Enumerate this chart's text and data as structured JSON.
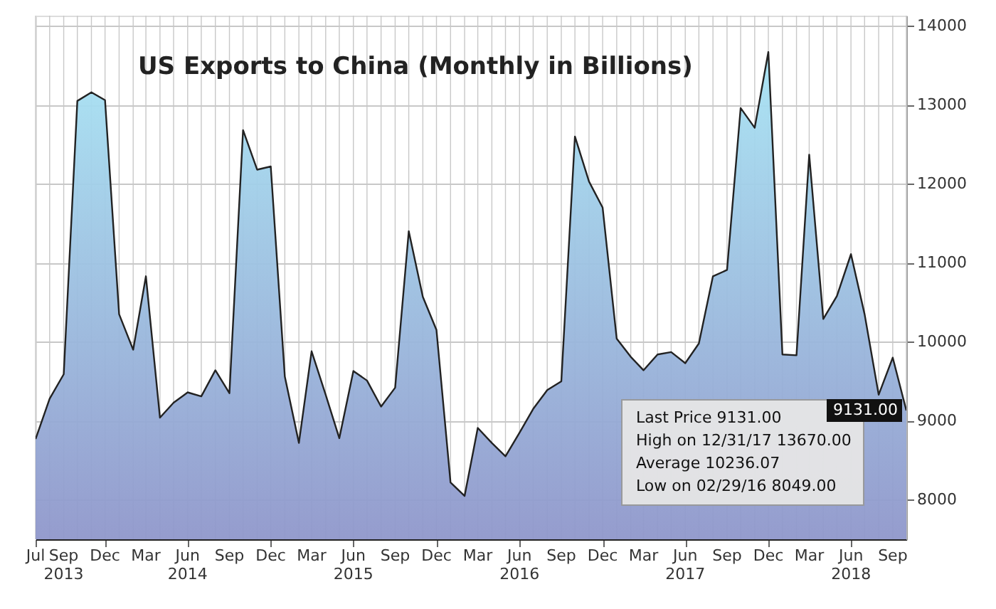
{
  "chart_data": {
    "type": "area",
    "title": "US Exports to China (Monthly in Billions)",
    "x": [
      "2013-07",
      "2013-08",
      "2013-09",
      "2013-10",
      "2013-11",
      "2013-12",
      "2014-01",
      "2014-02",
      "2014-03",
      "2014-04",
      "2014-05",
      "2014-06",
      "2014-07",
      "2014-08",
      "2014-09",
      "2014-10",
      "2014-11",
      "2014-12",
      "2015-01",
      "2015-02",
      "2015-03",
      "2015-04",
      "2015-05",
      "2015-06",
      "2015-07",
      "2015-08",
      "2015-09",
      "2015-10",
      "2015-11",
      "2015-12",
      "2016-01",
      "2016-02",
      "2016-03",
      "2016-04",
      "2016-05",
      "2016-06",
      "2016-07",
      "2016-08",
      "2016-09",
      "2016-10",
      "2016-11",
      "2016-12",
      "2017-01",
      "2017-02",
      "2017-03",
      "2017-04",
      "2017-05",
      "2017-06",
      "2017-07",
      "2017-08",
      "2017-09",
      "2017-10",
      "2017-11",
      "2017-12",
      "2018-01",
      "2018-02",
      "2018-03",
      "2018-04",
      "2018-05",
      "2018-06",
      "2018-07",
      "2018-08",
      "2018-09",
      "2018-10"
    ],
    "series": [
      {
        "color": "#8a86c2",
        "values": [
          8770,
          9280,
          9590,
          13050,
          13160,
          13060,
          10350,
          9900,
          10830,
          9040,
          9230,
          9360,
          9310,
          9640,
          9350,
          12680,
          12180,
          12220,
          9560,
          8720,
          9880,
          9330,
          8780,
          9630,
          9510,
          9180,
          9420,
          11400,
          10570,
          10150,
          8220,
          8049,
          8910,
          8720,
          8550,
          8850,
          9150,
          9390,
          9500,
          12600,
          12030,
          11700,
          10040,
          9810,
          9640,
          9840,
          9870,
          9730,
          9980,
          10830,
          10910,
          12960,
          12710,
          13670,
          9840,
          9830,
          12370,
          10290,
          10580,
          11110,
          10350,
          9330,
          9800,
          9131
        ]
      }
    ],
    "xlim": [
      "2013-07",
      "2018-10"
    ],
    "xticks": [
      {
        "value": "2013-07",
        "label": "Jul"
      },
      {
        "value": "2013-09",
        "label": "Sep 2013"
      },
      {
        "value": "2013-12",
        "label": "Dec"
      },
      {
        "value": "2014-03",
        "label": "Mar"
      },
      {
        "value": "2014-06",
        "label": "Jun 2014"
      },
      {
        "value": "2014-09",
        "label": "Sep"
      },
      {
        "value": "2014-12",
        "label": "Dec"
      },
      {
        "value": "2015-03",
        "label": "Mar"
      },
      {
        "value": "2015-06",
        "label": "Jun 2015"
      },
      {
        "value": "2015-09",
        "label": "Sep"
      },
      {
        "value": "2015-12",
        "label": "Dec"
      },
      {
        "value": "2016-03",
        "label": "Mar"
      },
      {
        "value": "2016-06",
        "label": "Jun 2016"
      },
      {
        "value": "2016-09",
        "label": "Sep"
      },
      {
        "value": "2016-12",
        "label": "Dec"
      },
      {
        "value": "2017-03",
        "label": "Mar"
      },
      {
        "value": "2017-06",
        "label": "Jun 2017"
      },
      {
        "value": "2017-09",
        "label": "Sep"
      },
      {
        "value": "2017-12",
        "label": "Dec"
      },
      {
        "value": "2018-03",
        "label": "Mar"
      },
      {
        "value": "2018-06",
        "label": "Jun 2018"
      },
      {
        "value": "2018-09",
        "label": "Sep"
      }
    ],
    "ylim": [
      7500,
      14130
    ],
    "yticks": [
      8000,
      9000,
      10000,
      11000,
      12000,
      13000,
      14000
    ],
    "grid": true,
    "annotations": [
      "Last Price 9131.00",
      "High on 12/31/17 13670.00",
      "Average 10236.07",
      "Low on 02/29/16 8049.00",
      {
        "text": "9131.00",
        "x": "2018-10",
        "y": 9131
      }
    ]
  }
}
